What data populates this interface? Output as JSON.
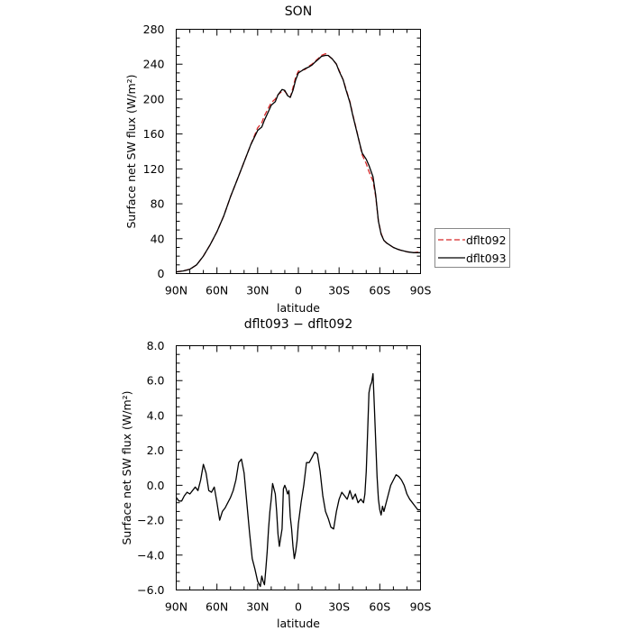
{
  "chart_data": [
    {
      "type": "line",
      "title": "SON",
      "xlabel": "latitude",
      "ylabel": "Surface net SW flux (W/m²)",
      "xlim": [
        90,
        -90
      ],
      "ylim": [
        0,
        280
      ],
      "xticks": [
        90,
        60,
        30,
        0,
        -30,
        -60,
        -90
      ],
      "xtick_labels": [
        "90N",
        "60N",
        "30N",
        "0",
        "30S",
        "60S",
        "90S"
      ],
      "yticks": [
        0,
        40,
        80,
        120,
        160,
        200,
        240,
        280
      ],
      "ytick_labels": [
        "0",
        "40",
        "80",
        "120",
        "160",
        "200",
        "240",
        "280"
      ],
      "legend_position": "right",
      "series": [
        {
          "name": "dflt092",
          "color": "#d62728",
          "dash": "dashed",
          "x": [
            90,
            85,
            80,
            75,
            70,
            65,
            60,
            55,
            50,
            45,
            40,
            35,
            30,
            27,
            25,
            22,
            20,
            17,
            15,
            12,
            10,
            8,
            6,
            4,
            2,
            0,
            -2,
            -5,
            -8,
            -10,
            -12,
            -15,
            -17,
            -20,
            -22,
            -25,
            -28,
            -30,
            -33,
            -35,
            -38,
            -40,
            -43,
            -45,
            -47,
            -50,
            -52,
            -55,
            -57,
            -59,
            -61,
            -63,
            -65,
            -67,
            -70,
            -73,
            -75,
            -80,
            -85,
            -90
          ],
          "y": [
            2,
            3,
            5,
            10,
            20,
            33,
            48,
            66,
            88,
            108,
            128,
            148,
            167,
            173,
            181,
            190,
            196,
            200,
            205,
            209,
            209,
            205,
            202,
            213,
            225,
            232,
            233,
            234,
            238,
            240,
            243,
            247,
            250,
            252,
            250,
            246,
            240,
            233,
            222,
            212,
            197,
            183,
            164,
            150,
            136,
            126,
            117,
            106,
            88,
            60,
            46,
            38,
            35,
            33,
            30,
            28,
            27,
            25,
            24,
            25
          ]
        },
        {
          "name": "dflt093",
          "color": "#000000",
          "dash": "solid",
          "x": [
            90,
            85,
            80,
            75,
            70,
            65,
            60,
            55,
            50,
            45,
            40,
            35,
            30,
            27,
            25,
            22,
            20,
            17,
            15,
            12,
            10,
            8,
            6,
            4,
            2,
            0,
            -2,
            -5,
            -8,
            -10,
            -12,
            -15,
            -17,
            -20,
            -22,
            -25,
            -28,
            -30,
            -33,
            -35,
            -38,
            -40,
            -43,
            -45,
            -47,
            -50,
            -52,
            -55,
            -57,
            -59,
            -61,
            -63,
            -65,
            -67,
            -70,
            -73,
            -75,
            -80,
            -85,
            -90
          ],
          "y": [
            2,
            3,
            5,
            10,
            20,
            33,
            48,
            66,
            88,
            108,
            128,
            148,
            164,
            168,
            176,
            186,
            193,
            197,
            205,
            211,
            210,
            204,
            202,
            210,
            222,
            230,
            232,
            235,
            237,
            239,
            242,
            246,
            249,
            250,
            250,
            246,
            240,
            232,
            222,
            211,
            196,
            182,
            163,
            150,
            138,
            131,
            124,
            111,
            90,
            60,
            45,
            38,
            35,
            33,
            30,
            28,
            27,
            25,
            24,
            24
          ]
        }
      ]
    },
    {
      "type": "line",
      "title": "dflt093 − dflt092",
      "xlabel": "latitude",
      "ylabel": "Surface net SW flux (W/m²)",
      "xlim": [
        90,
        -90
      ],
      "ylim": [
        -6,
        8
      ],
      "xticks": [
        90,
        60,
        30,
        0,
        -30,
        -60,
        -90
      ],
      "xtick_labels": [
        "90N",
        "60N",
        "30N",
        "0",
        "30S",
        "60S",
        "90S"
      ],
      "yticks": [
        -6,
        -4,
        -2,
        0,
        2,
        4,
        6,
        8
      ],
      "ytick_labels": [
        "−6.0",
        "−4.0",
        "−2.0",
        "0.0",
        "2.0",
        "4.0",
        "6.0",
        "8.0"
      ],
      "series": [
        {
          "name": "",
          "color": "#000000",
          "dash": "solid",
          "x": [
            90,
            88,
            86,
            84,
            82,
            80,
            78,
            76,
            74,
            72,
            70,
            68,
            66,
            64,
            62,
            60,
            58,
            56,
            54,
            52,
            50,
            48,
            46,
            44,
            42,
            40,
            38,
            36,
            34,
            32,
            30,
            28,
            27,
            26,
            25,
            24,
            23,
            22,
            21,
            20,
            19,
            18,
            17,
            16,
            15,
            14,
            13,
            12,
            11,
            10,
            9,
            8,
            7,
            6,
            5,
            4,
            3,
            2,
            1,
            0,
            -2,
            -4,
            -6,
            -8,
            -10,
            -12,
            -14,
            -16,
            -18,
            -20,
            -22,
            -24,
            -26,
            -28,
            -30,
            -32,
            -34,
            -36,
            -38,
            -40,
            -42,
            -44,
            -46,
            -48,
            -49,
            -50,
            -51,
            -52,
            -53,
            -54,
            -55,
            -56,
            -57,
            -58,
            -59,
            -60,
            -61,
            -62,
            -63,
            -64,
            -66,
            -68,
            -70,
            -72,
            -74,
            -76,
            -78,
            -80,
            -82,
            -84,
            -86,
            -88,
            -90
          ],
          "y": [
            -0.7,
            -0.9,
            -0.9,
            -0.6,
            -0.4,
            -0.5,
            -0.3,
            -0.1,
            -0.3,
            0.3,
            1.2,
            0.7,
            -0.3,
            -0.4,
            -0.1,
            -1.0,
            -2.0,
            -1.5,
            -1.3,
            -1.0,
            -0.7,
            -0.3,
            0.3,
            1.3,
            1.5,
            0.7,
            -1.0,
            -2.7,
            -4.2,
            -4.8,
            -5.5,
            -5.8,
            -5.2,
            -5.5,
            -5.7,
            -4.8,
            -3.8,
            -2.5,
            -1.5,
            -0.8,
            0.1,
            -0.2,
            -0.5,
            -1.5,
            -2.8,
            -3.5,
            -3.0,
            -2.5,
            -0.2,
            0.0,
            -0.2,
            -0.5,
            -0.3,
            -1.8,
            -2.5,
            -3.5,
            -4.2,
            -3.8,
            -3.2,
            -2.2,
            -1.0,
            0.0,
            1.3,
            1.3,
            1.6,
            1.9,
            1.8,
            0.8,
            -0.6,
            -1.5,
            -1.9,
            -2.4,
            -2.5,
            -1.5,
            -0.8,
            -0.4,
            -0.6,
            -0.8,
            -0.3,
            -0.8,
            -0.5,
            -1.0,
            -0.8,
            -1.0,
            -0.5,
            0.8,
            3.0,
            5.3,
            5.7,
            5.9,
            6.4,
            4.5,
            2.5,
            0.5,
            -0.8,
            -1.4,
            -1.7,
            -1.2,
            -1.5,
            -1.2,
            -0.6,
            0.0,
            0.3,
            0.6,
            0.5,
            0.3,
            0.0,
            -0.5,
            -0.8,
            -1.0,
            -1.2,
            -1.4,
            -1.4
          ]
        }
      ]
    }
  ]
}
